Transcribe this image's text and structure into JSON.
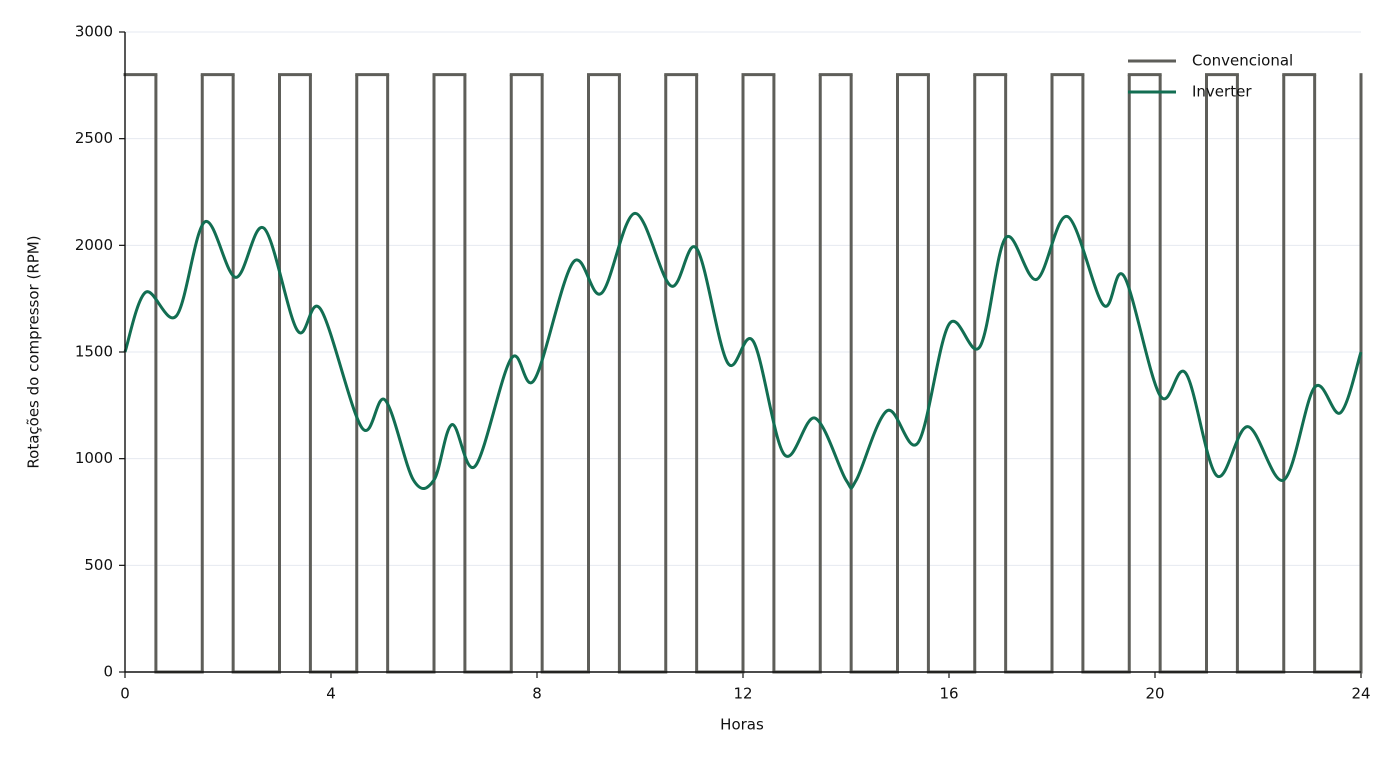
{
  "chart_data": {
    "type": "line",
    "xlabel": "Horas",
    "ylabel": "Rotações do compressor (RPM)",
    "xlim": [
      0,
      24
    ],
    "xticks": [
      0,
      4,
      8,
      12,
      16,
      20,
      24
    ],
    "ylim": [
      0,
      3000
    ],
    "yticks": [
      0,
      500,
      1000,
      1500,
      2000,
      2500,
      3000
    ],
    "grid": true,
    "legend": "upper right",
    "series": [
      {
        "name": "Convencional",
        "color": "#5e5e59",
        "drawstyle": "steps-post",
        "x": [
          0,
          0.6,
          1.5,
          2.1,
          3.0,
          3.6,
          4.5,
          5.1,
          6.0,
          6.6,
          7.5,
          8.1,
          9.0,
          9.6,
          10.5,
          11.1,
          12.0,
          12.6,
          13.5,
          14.1,
          15.0,
          15.6,
          16.5,
          17.1,
          18.0,
          18.6,
          19.5,
          20.1,
          21.0,
          21.6,
          22.5,
          23.1,
          24
        ],
        "values": [
          2800,
          0,
          2800,
          0,
          2800,
          0,
          2800,
          0,
          2800,
          0,
          2800,
          0,
          2800,
          0,
          2800,
          0,
          2800,
          0,
          2800,
          0,
          2800,
          0,
          2800,
          0,
          2800,
          0,
          2800,
          0,
          2800,
          0,
          2800,
          0,
          2800
        ]
      },
      {
        "name": "Inverter",
        "color": "#126e52",
        "drawstyle": "smooth",
        "x": [
          0,
          0.4,
          1.0,
          1.55,
          2.15,
          2.7,
          3.35,
          3.8,
          4.6,
          5.05,
          5.6,
          6.0,
          6.35,
          6.8,
          7.5,
          7.95,
          8.7,
          9.25,
          9.9,
          10.6,
          11.1,
          11.7,
          12.2,
          12.8,
          13.4,
          14.0,
          14.2,
          14.8,
          15.4,
          16.0,
          16.6,
          17.1,
          17.7,
          18.3,
          19.0,
          19.4,
          20.1,
          20.6,
          21.2,
          21.8,
          22.5,
          23.1,
          23.6,
          24
        ],
        "values": [
          1500,
          1780,
          1670,
          2110,
          1850,
          2080,
          1600,
          1700,
          1145,
          1275,
          900,
          900,
          1160,
          965,
          1470,
          1370,
          1920,
          1775,
          2150,
          1810,
          1985,
          1450,
          1550,
          1020,
          1190,
          900,
          900,
          1225,
          1075,
          1630,
          1525,
          2035,
          1840,
          2135,
          1720,
          1855,
          1295,
          1400,
          920,
          1150,
          900,
          1335,
          1215,
          1500
        ]
      }
    ]
  }
}
